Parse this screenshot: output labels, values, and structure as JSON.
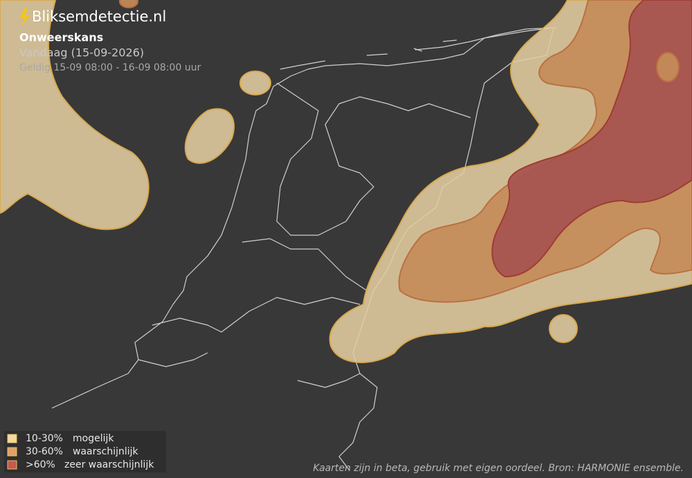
{
  "header": {
    "logo": "Bliksemdetectie.nl",
    "title": "Onweerskans",
    "date": "Vandaag (15-09-2026)",
    "validity": "Geldig 15-09 08:00 - 16-09 08:00 uur"
  },
  "legend": [
    {
      "range": "10-30%",
      "label": "mogelijk",
      "color": "#f3d99a"
    },
    {
      "range": "30-60%",
      "label": "waarschijnlijk",
      "color": "#e0a068"
    },
    {
      "range": ">60%",
      "label": "zeer waarschijnlijk",
      "color": "#c8584e"
    }
  ],
  "footer": "Kaarten zijn in beta, gebruik met eigen oordeel. Bron: HARMONIE ensemble."
}
